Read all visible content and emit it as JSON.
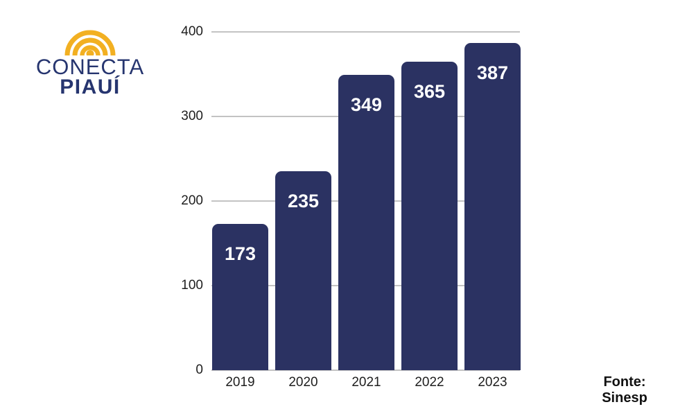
{
  "logo": {
    "line1": "CONECTA",
    "line2": "PIAUÍ",
    "icon": "rainbow-arcs-icon",
    "text_color": "#26356f",
    "arc_color": "#f2b022"
  },
  "chart_data": {
    "type": "bar",
    "categories": [
      "2019",
      "2020",
      "2021",
      "2022",
      "2023"
    ],
    "values": [
      173,
      235,
      349,
      365,
      387
    ],
    "title": "",
    "xlabel": "",
    "ylabel": "",
    "ylim": [
      0,
      400
    ],
    "yticks": [
      0,
      100,
      200,
      300,
      400
    ],
    "grid": true,
    "legend": false,
    "bar_color": "#2b3262",
    "value_label_color": "#ffffff",
    "gridline_color": "#c3c3c3",
    "tick_label_color": "#1e1e1e"
  },
  "footer": {
    "source_label": "Fonte: Sinesp"
  }
}
